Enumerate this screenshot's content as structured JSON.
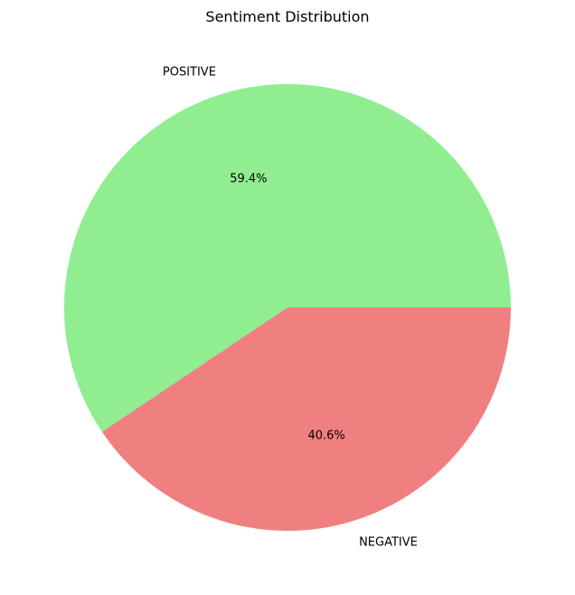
{
  "chart_data": {
    "type": "pie",
    "title": "Sentiment Distribution",
    "slices": [
      {
        "label": "POSITIVE",
        "value": 59.4,
        "pct_label": "59.4%",
        "color": "#90ee90"
      },
      {
        "label": "NEGATIVE",
        "value": 40.6,
        "pct_label": "40.6%",
        "color": "#f08080"
      }
    ],
    "start_angle_deg": 0,
    "direction": "counterclockwise"
  }
}
